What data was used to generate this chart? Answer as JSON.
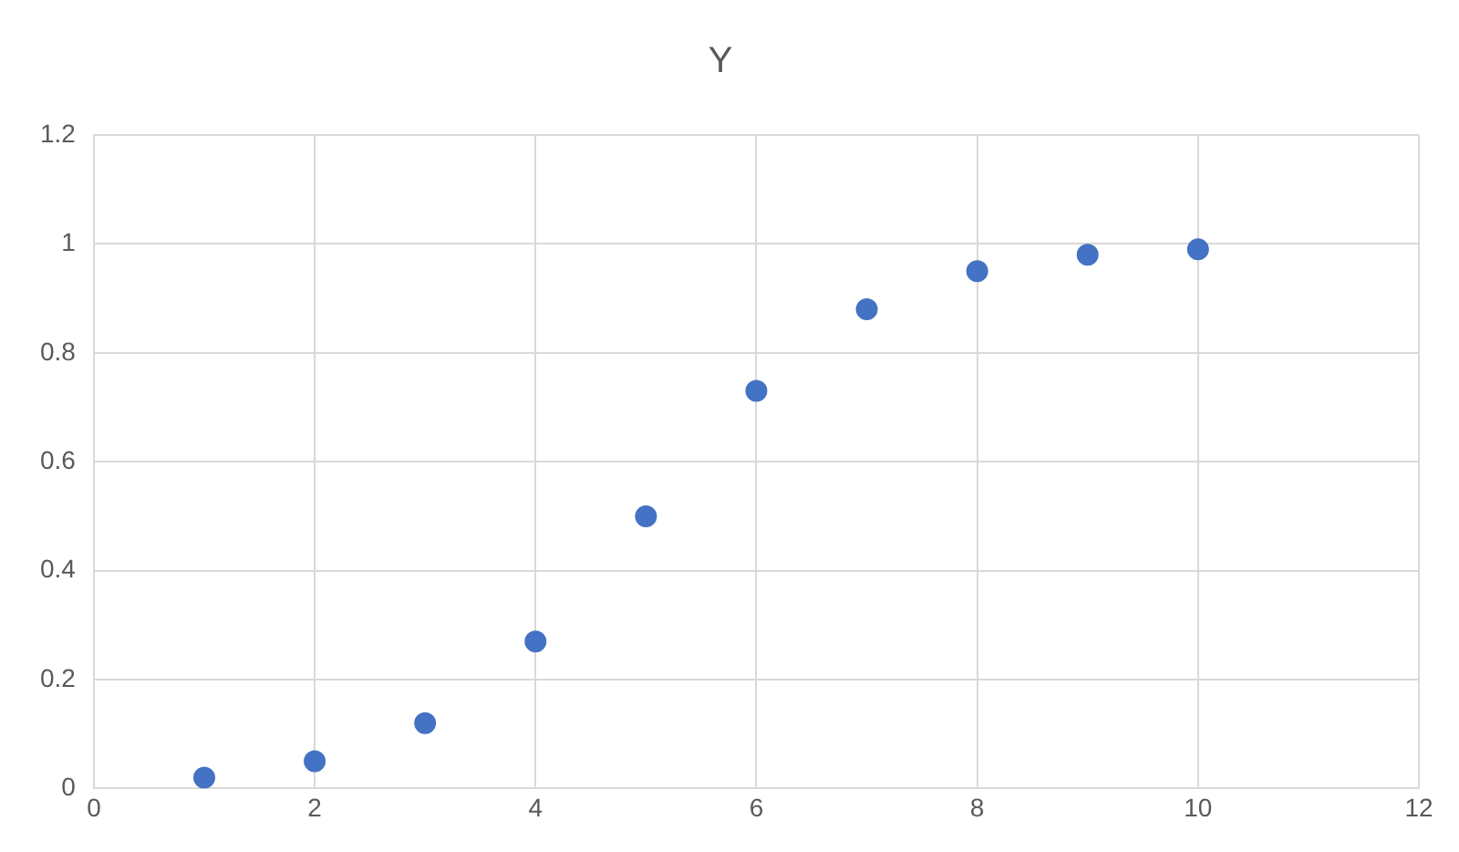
{
  "chart_data": {
    "type": "scatter",
    "title": "Y",
    "x": [
      1,
      2,
      3,
      4,
      5,
      6,
      7,
      8,
      9,
      10
    ],
    "series": [
      {
        "color": "#4472c4",
        "values": [
          0.02,
          0.05,
          0.12,
          0.27,
          0.5,
          0.73,
          0.88,
          0.95,
          0.98,
          0.99
        ]
      }
    ],
    "xlim": [
      0,
      12
    ],
    "xticks": [
      0,
      2,
      4,
      6,
      8,
      10,
      12
    ],
    "ylim": [
      0,
      1.2
    ],
    "yticks": [
      0,
      0.2,
      0.4,
      0.6,
      0.8,
      1,
      1.2
    ],
    "grid": true,
    "marker": "circle"
  }
}
